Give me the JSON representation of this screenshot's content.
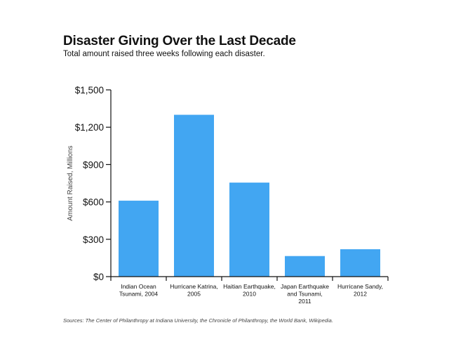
{
  "chart_data": {
    "type": "bar",
    "title": "Disaster Giving Over the Last Decade",
    "subtitle": "Total amount raised three weeks following each disaster.",
    "ylabel": "Amount Raised, Millions",
    "xlabel": "",
    "ylim": [
      0,
      1500
    ],
    "yticks": [
      0,
      300,
      600,
      900,
      1200,
      1500
    ],
    "ytick_labels": [
      "$0",
      "$300",
      "$600",
      "$900",
      "$1,200",
      "$1,500"
    ],
    "categories": [
      [
        "Indian Ocean",
        "Tsunami, 2004"
      ],
      [
        "Hurricane Katrina,",
        "2005"
      ],
      [
        "Haitian Earthquake,",
        "2010"
      ],
      [
        "Japan Earthquake",
        "and Tsunami,",
        "2011"
      ],
      [
        "Hurricane Sandy,",
        "2012"
      ]
    ],
    "values": [
      610,
      1300,
      755,
      165,
      220
    ],
    "bar_color": "#42a6f2",
    "source": "Sources: The Center of Philanthropy at Indiana University, the Chronicle of Philanthropy, the World Bank, Wikipedia."
  }
}
